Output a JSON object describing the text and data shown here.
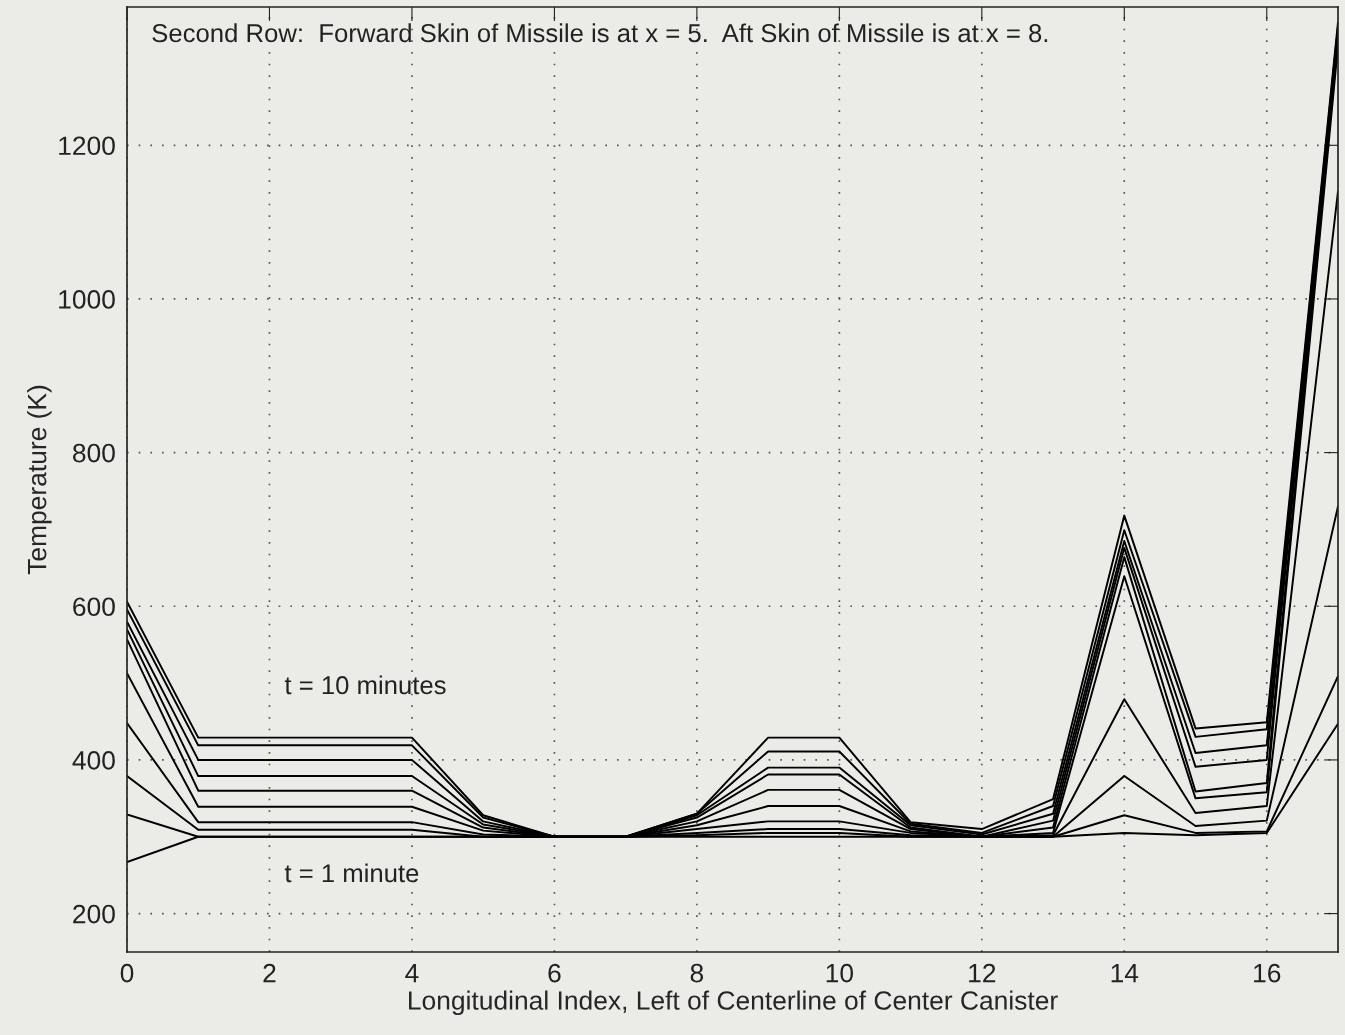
{
  "chart_data": {
    "type": "line",
    "xlabel": "Longitudinal Index, Left of Centerline of Center Canister",
    "ylabel": "Temperature (K)",
    "x": [
      0,
      1,
      2,
      3,
      4,
      5,
      6,
      7,
      8,
      9,
      10,
      11,
      12,
      13,
      14,
      15,
      16,
      17
    ],
    "series": [
      {
        "color": "#000000",
        "values": [
          267,
          300,
          300,
          300,
          300,
          300,
          300,
          300,
          300,
          300,
          300,
          300,
          300,
          300,
          305,
          302,
          305,
          447
        ]
      },
      {
        "color": "#000000",
        "values": [
          329,
          300,
          300,
          300,
          300,
          300,
          300,
          300,
          302,
          305,
          305,
          300,
          300,
          300,
          328,
          305,
          307,
          509
        ]
      },
      {
        "color": "#000000",
        "values": [
          379,
          309,
          309,
          309,
          309,
          300,
          300,
          300,
          305,
          310,
          310,
          302,
          300,
          300,
          379,
          314,
          321,
          730
        ]
      },
      {
        "color": "#000000",
        "values": [
          448,
          319,
          319,
          319,
          319,
          303,
          300,
          300,
          310,
          320,
          320,
          305,
          300,
          302,
          479,
          331,
          340,
          1140
        ]
      },
      {
        "color": "#000000",
        "values": [
          513,
          339,
          339,
          339,
          339,
          308,
          300,
          300,
          315,
          340,
          340,
          307,
          300,
          305,
          639,
          350,
          358,
          1330
        ]
      },
      {
        "color": "#000000",
        "values": [
          557,
          360,
          360,
          360,
          360,
          312,
          300,
          300,
          320,
          361,
          361,
          310,
          300,
          312,
          664,
          359,
          370,
          1340
        ]
      },
      {
        "color": "#000000",
        "values": [
          570,
          379,
          379,
          379,
          379,
          316,
          300,
          300,
          325,
          381,
          381,
          312,
          300,
          321,
          676,
          391,
          400,
          1345
        ]
      },
      {
        "color": "#000000",
        "values": [
          580,
          400,
          400,
          400,
          400,
          320,
          300,
          300,
          328,
          390,
          390,
          315,
          303,
          330,
          685,
          409,
          419,
          1350
        ]
      },
      {
        "color": "#000000",
        "values": [
          596,
          419,
          419,
          419,
          419,
          325,
          300,
          300,
          330,
          411,
          411,
          317,
          305,
          340,
          699,
          430,
          440,
          1355
        ]
      },
      {
        "color": "#000000",
        "values": [
          606,
          429,
          429,
          429,
          429,
          328,
          300,
          300,
          330,
          429,
          429,
          319,
          310,
          349,
          718,
          441,
          449,
          1360
        ]
      }
    ],
    "xlim": [
      0,
      17
    ],
    "xticks": [
      0,
      2,
      4,
      6,
      8,
      10,
      12,
      14,
      16
    ],
    "ylim": [
      150,
      1380
    ],
    "yticks": [
      200,
      400,
      600,
      800,
      1000,
      1200
    ],
    "grid": true,
    "marker": "none",
    "line_style": "solid",
    "legend": false,
    "annotations": [
      "Second Row:  Forward Skin of Missile is at x = 5.  Aft Skin of Missile is at x = 8.",
      "t = 10 minutes",
      "t = 1 minute"
    ]
  }
}
